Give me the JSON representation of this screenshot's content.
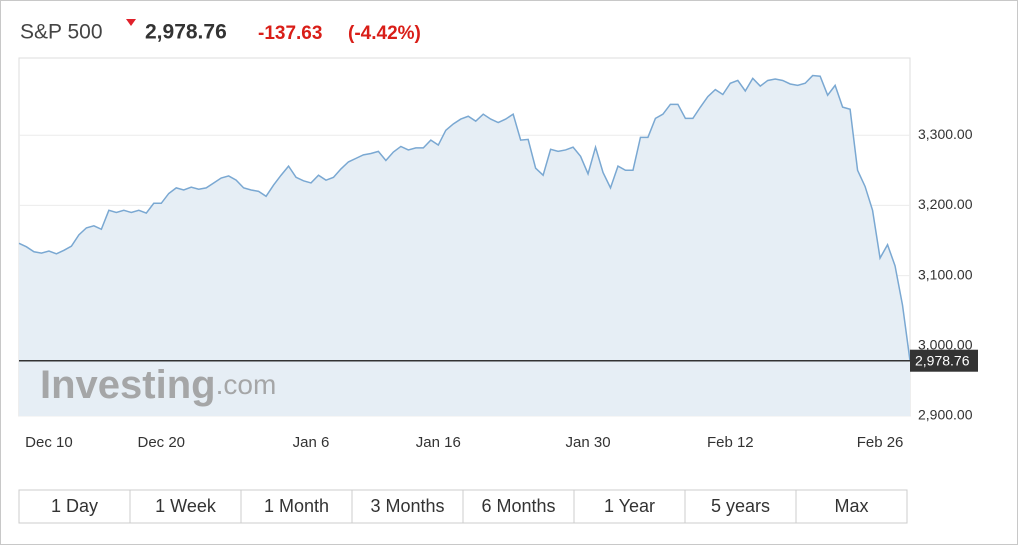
{
  "header": {
    "price": "2,978.76",
    "change": "-137.63",
    "change_pct": "(-4.42%)"
  },
  "watermark": [
    "Investing",
    ".com"
  ],
  "range_buttons": [
    "1 Day",
    "1 Week",
    "1 Month",
    "3 Months",
    "6 Months",
    "1 Year",
    "5 years",
    "Max"
  ],
  "chart_data": {
    "type": "line",
    "title": "S&P 500",
    "categories": [
      null,
      null,
      null,
      null,
      "Dec 10",
      null,
      null,
      null,
      null,
      null,
      null,
      null,
      null,
      null,
      null,
      null,
      null,
      null,
      null,
      "Dec 20",
      null,
      null,
      null,
      null,
      null,
      null,
      null,
      null,
      null,
      null,
      null,
      null,
      null,
      null,
      null,
      null,
      null,
      null,
      null,
      "Jan 6",
      null,
      null,
      null,
      null,
      null,
      null,
      null,
      null,
      null,
      null,
      null,
      null,
      null,
      null,
      null,
      null,
      "Jan 16",
      null,
      null,
      null,
      null,
      null,
      null,
      null,
      null,
      null,
      null,
      null,
      null,
      null,
      null,
      null,
      null,
      null,
      null,
      null,
      "Jan 30",
      null,
      null,
      null,
      null,
      null,
      null,
      null,
      null,
      null,
      null,
      null,
      null,
      null,
      null,
      null,
      null,
      null,
      null,
      "Feb 12",
      null,
      null,
      null,
      null,
      null,
      null,
      null,
      null,
      null,
      null,
      null,
      null,
      null,
      null,
      null,
      null,
      null,
      null,
      null,
      "Feb 26",
      null,
      null,
      null,
      null
    ],
    "values": [
      3146,
      3141,
      3134,
      3132,
      3135,
      3131,
      3136,
      3142,
      3158,
      3168,
      3171,
      3166,
      3193,
      3190,
      3193,
      3190,
      3193,
      3189,
      3203,
      3203,
      3217,
      3225,
      3222,
      3226,
      3223,
      3225,
      3232,
      3239,
      3242,
      3236,
      3225,
      3222,
      3220,
      3213,
      3229,
      3243,
      3256,
      3240,
      3235,
      3232,
      3243,
      3236,
      3240,
      3252,
      3262,
      3267,
      3272,
      3274,
      3277,
      3264,
      3276,
      3284,
      3279,
      3282,
      3282,
      3293,
      3286,
      3307,
      3316,
      3323,
      3327,
      3320,
      3330,
      3323,
      3318,
      3323,
      3330,
      3293,
      3294,
      3253,
      3243,
      3280,
      3277,
      3279,
      3283,
      3270,
      3245,
      3283,
      3247,
      3225,
      3256,
      3250,
      3250,
      3297,
      3297,
      3324,
      3330,
      3344,
      3344,
      3324,
      3324,
      3340,
      3355,
      3365,
      3358,
      3374,
      3378,
      3363,
      3381,
      3370,
      3378,
      3380,
      3378,
      3373,
      3371,
      3374,
      3385,
      3384,
      3357,
      3371,
      3340,
      3337,
      3250,
      3227,
      3193,
      3125,
      3144,
      3114,
      3058,
      2978.76
    ],
    "color": "#7aa8d2",
    "fill_color": "#e6eef5",
    "last_price": {
      "value": 2978.76,
      "label": "2,978.76"
    },
    "ylim": [
      2900,
      3410
    ],
    "yticks": [
      {
        "value": 2900,
        "label": "2,900.00"
      },
      {
        "value": 3000,
        "label": "3,000.00"
      },
      {
        "value": 3100,
        "label": "3,100.00"
      },
      {
        "value": 3200,
        "label": "3,200.00"
      },
      {
        "value": 3300,
        "label": "3,300.00"
      }
    ],
    "grid": true
  }
}
